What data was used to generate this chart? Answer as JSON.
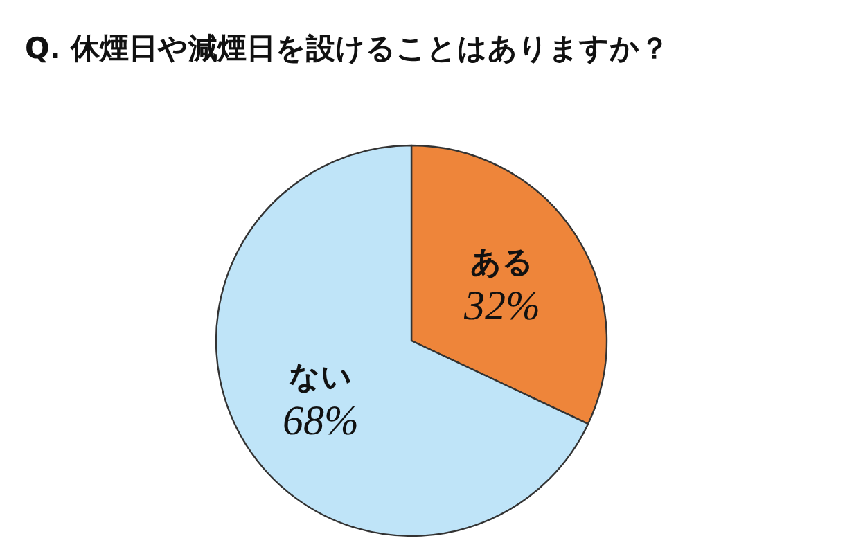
{
  "chart_data": {
    "type": "pie",
    "title": "Q. 休煙日や減煙日を設けることはありますか？",
    "categories": [
      "ある",
      "ない"
    ],
    "values": [
      32,
      68
    ],
    "colors": [
      "#ee853a",
      "#bfe4f8"
    ],
    "value_labels": [
      "32%",
      "68%"
    ]
  }
}
